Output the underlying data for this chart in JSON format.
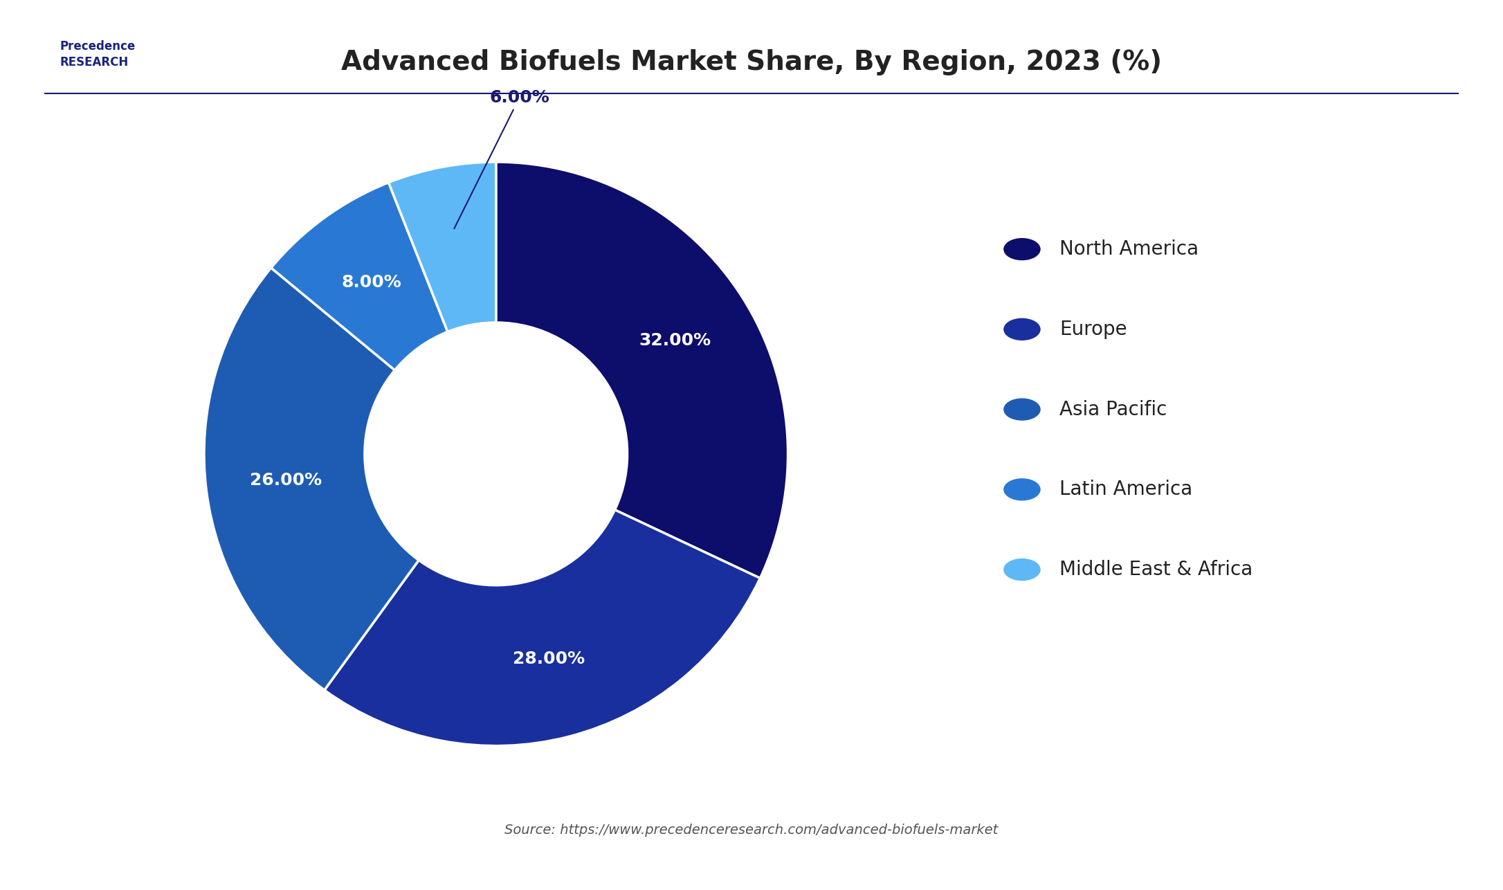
{
  "title": "Advanced Biofuels Market Share, By Region, 2023 (%)",
  "labels": [
    "North America",
    "Europe",
    "Asia Pacific",
    "Latin America",
    "Middle East & Africa"
  ],
  "values": [
    32.0,
    28.0,
    26.0,
    8.0,
    6.0
  ],
  "colors": [
    "#0d0d6b",
    "#1a2f9e",
    "#1e5cb3",
    "#2979d4",
    "#5eb8f5"
  ],
  "pct_labels": [
    "32.00%",
    "28.00%",
    "26.00%",
    "8.00%",
    "6.00%"
  ],
  "source_text": "Source: https://www.precedenceresearch.com/advanced-biofuels-market",
  "background_color": "#ffffff",
  "title_fontsize": 28,
  "legend_fontsize": 20,
  "label_fontsize": 18
}
